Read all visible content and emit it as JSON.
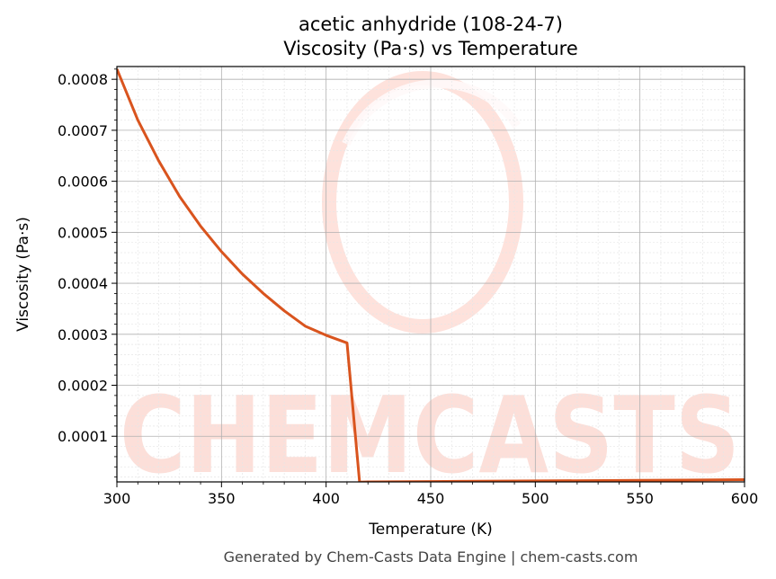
{
  "chart_data": {
    "type": "line",
    "title": "acetic anhydride (108-24-7)",
    "subtitle": "Viscosity (Pa·s) vs Temperature",
    "xlabel": "Temperature (K)",
    "ylabel": "Viscosity (Pa·s)",
    "xlim": [
      300,
      600
    ],
    "ylim": [
      1.05e-05,
      0.000825
    ],
    "x_ticks": [
      300,
      350,
      400,
      450,
      500,
      550,
      600
    ],
    "x_tick_labels": [
      "300",
      "350",
      "400",
      "450",
      "500",
      "550",
      "600"
    ],
    "y_ticks": [
      0.0001,
      0.0002,
      0.0003,
      0.0004,
      0.0005,
      0.0006,
      0.0007,
      0.0008
    ],
    "y_tick_labels": [
      "0.0001",
      "0.0002",
      "0.0003",
      "0.0004",
      "0.0005",
      "0.0006",
      "0.0007",
      "0.0008"
    ],
    "grid": true,
    "line_color": "#d9541e",
    "series": [
      {
        "x": [
          300,
          310,
          320,
          330,
          340,
          350,
          360,
          370,
          380,
          390,
          400,
          410,
          416,
          420,
          450,
          500,
          550,
          600
        ],
        "y": [
          0.00082,
          0.00072,
          0.00064,
          0.00057,
          0.000512,
          0.000462,
          0.000418,
          0.00038,
          0.000346,
          0.000316,
          0.000298,
          0.000283,
          1e-05,
          1.05e-05,
          1.12e-05,
          1.24e-05,
          1.36e-05,
          1.48e-05
        ]
      }
    ]
  },
  "watermark": {
    "text": "CHEMCASTS",
    "color": "#fbd5cd"
  },
  "footer": "Generated by Chem-Casts Data Engine | chem-casts.com"
}
